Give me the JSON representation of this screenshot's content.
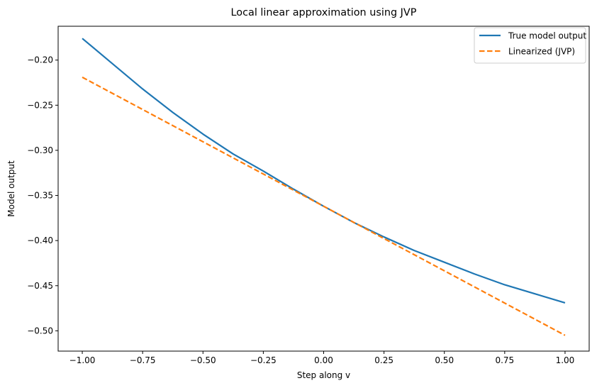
{
  "chart_data": {
    "type": "line",
    "title": "Local linear approximation using JVP",
    "xlabel": "Step along v",
    "ylabel": "Model output",
    "xlim": [
      -1.1,
      1.1
    ],
    "ylim": [
      -0.5225,
      -0.1625
    ],
    "xticks": [
      -1.0,
      -0.75,
      -0.5,
      -0.25,
      0.0,
      0.25,
      0.5,
      0.75,
      1.0
    ],
    "xtick_labels": [
      "−1.00",
      "−0.75",
      "−0.50",
      "−0.25",
      "0.00",
      "0.25",
      "0.50",
      "0.75",
      "1.00"
    ],
    "yticks": [
      -0.2,
      -0.25,
      -0.3,
      -0.35,
      -0.4,
      -0.45,
      -0.5
    ],
    "ytick_labels": [
      "−0.20",
      "−0.25",
      "−0.30",
      "−0.35",
      "−0.40",
      "−0.45",
      "−0.50"
    ],
    "grid": false,
    "legend_position": "top-right",
    "series": [
      {
        "name": "True model output",
        "color": "#1f77b4",
        "style": "solid",
        "x": [
          -1.0,
          -0.875,
          -0.75,
          -0.625,
          -0.5,
          -0.375,
          -0.25,
          -0.125,
          0.0,
          0.125,
          0.25,
          0.375,
          0.5,
          0.625,
          0.75,
          0.875,
          1.0
        ],
        "y": [
          -0.176,
          -0.204,
          -0.232,
          -0.258,
          -0.282,
          -0.304,
          -0.323,
          -0.343,
          -0.362,
          -0.38,
          -0.396,
          -0.411,
          -0.424,
          -0.437,
          -0.449,
          -0.459,
          -0.469
        ]
      },
      {
        "name": "Linearized (JVP)",
        "color": "#ff7f0e",
        "style": "dashed",
        "x": [
          -1.0,
          1.0
        ],
        "y": [
          -0.219,
          -0.505
        ]
      }
    ]
  }
}
